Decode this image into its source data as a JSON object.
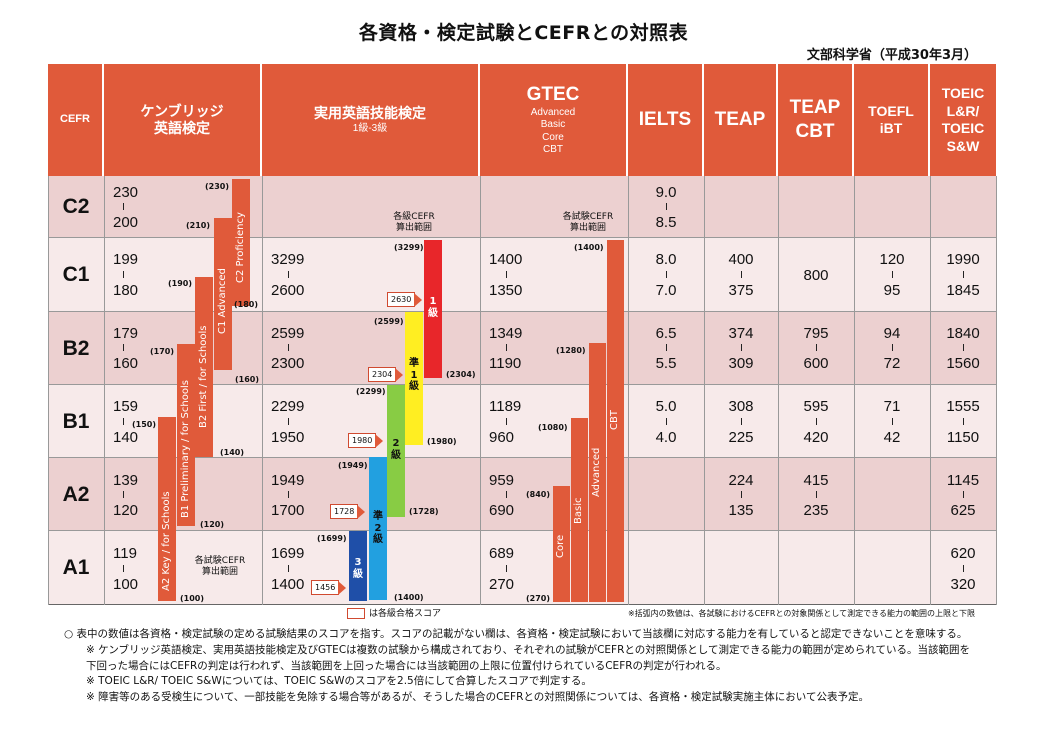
{
  "title": "各資格・検定試験とCEFRとの対照表",
  "source": "文部科学省（平成30年3月）",
  "colors": {
    "header": "#e05a3a",
    "row_dark": "#ecd0d0",
    "row_light": "#f7eaea",
    "eiken_pass_yellow": "#ffee22",
    "eiken_2": "#88cc44",
    "eiken_pre2": "#22a0e0",
    "eiken_3": "#1f4fa8"
  },
  "headers": {
    "cefr": "CEFR",
    "cambridge": [
      "ケンブリッジ",
      "英語検定"
    ],
    "eiken": "実用英語技能検定",
    "eiken_sub": "1級-3級",
    "gtec": "GTEC",
    "gtec_sub": [
      "Advanced",
      "Basic",
      "Core",
      "CBT"
    ],
    "ielts": "IELTS",
    "teap": "TEAP",
    "teap_cbt": [
      "TEAP",
      "CBT"
    ],
    "toefl": [
      "TOEFL",
      "iBT"
    ],
    "toeic": [
      "TOEIC",
      "L&R/",
      "TOEIC",
      "S&W"
    ]
  },
  "levels": [
    "C2",
    "C1",
    "B2",
    "B1",
    "A2",
    "A1"
  ],
  "cambridge_scores": [
    [
      "230",
      "200"
    ],
    [
      "199",
      "180"
    ],
    [
      "179",
      "160"
    ],
    [
      "159",
      "140"
    ],
    [
      "139",
      "120"
    ],
    [
      "119",
      "100"
    ]
  ],
  "cambridge_bars": [
    {
      "name": "C2 Proficiency",
      "top": "(230)",
      "bottom": "(180)"
    },
    {
      "name": "C1 Advanced",
      "top": "(210)",
      "bottom": "(160)"
    },
    {
      "name": "B2 First / for Schools",
      "top": "(190)",
      "bottom": "(140)"
    },
    {
      "name": "B1 Preliminary / for Schools",
      "top": "(170)",
      "bottom": "(120)"
    },
    {
      "name": "A2 Key / for Schools",
      "top": "(150)",
      "bottom": "(100)"
    }
  ],
  "cambridge_note": [
    "各試験CEFR",
    "算出範囲"
  ],
  "eiken_scores": [
    [
      "3299",
      "2600"
    ],
    [
      "2599",
      "2300"
    ],
    [
      "2299",
      "1950"
    ],
    [
      "1949",
      "1700"
    ],
    [
      "1699",
      "1400"
    ]
  ],
  "eiken_grades": [
    {
      "grade": "1級",
      "top": "(3299)",
      "bottom": "(2304)",
      "pass": "2630"
    },
    {
      "grade": "準1級",
      "top": "(2599)",
      "bottom": "(1980)",
      "pass": "2304"
    },
    {
      "grade": "2級",
      "top": "(2299)",
      "bottom": "(1728)",
      "pass": "1980"
    },
    {
      "grade": "準2級",
      "top": "(1949)",
      "bottom": "(1400)",
      "pass": "1728"
    },
    {
      "grade": "3級",
      "top": "(1699)",
      "bottom": "",
      "pass": "1456"
    }
  ],
  "eiken_note": [
    "各級CEFR",
    "算出範囲"
  ],
  "gtec_scores": [
    [
      "1400",
      "1350"
    ],
    [
      "1349",
      "1190"
    ],
    [
      "1189",
      "960"
    ],
    [
      "959",
      "690"
    ],
    [
      "689",
      "270"
    ]
  ],
  "gtec_bars": [
    {
      "name": "CBT",
      "top": "(1400)"
    },
    {
      "name": "Advanced",
      "top": "(1280)"
    },
    {
      "name": "Basic",
      "top": "(1080)"
    },
    {
      "name": "Core",
      "top": "(840)",
      "bottom": "(270)"
    }
  ],
  "gtec_note": [
    "各試験CEFR",
    "算出範囲"
  ],
  "ielts_scores": [
    [
      "9.0",
      "8.5"
    ],
    [
      "8.0",
      "7.0"
    ],
    [
      "6.5",
      "5.5"
    ],
    [
      "5.0",
      "4.0"
    ],
    null,
    null
  ],
  "teap_scores": [
    null,
    [
      "400",
      "375"
    ],
    [
      "374",
      "309"
    ],
    [
      "308",
      "225"
    ],
    [
      "224",
      "135"
    ],
    null
  ],
  "teap_cbt_scores": [
    null,
    [
      "800"
    ],
    [
      "795",
      "600"
    ],
    [
      "595",
      "420"
    ],
    [
      "415",
      "235"
    ],
    null
  ],
  "toefl_scores": [
    null,
    [
      "120",
      "95"
    ],
    [
      "94",
      "72"
    ],
    [
      "71",
      "42"
    ],
    null,
    null
  ],
  "toeic_scores": [
    null,
    [
      "1990",
      "1845"
    ],
    [
      "1840",
      "1560"
    ],
    [
      "1555",
      "1150"
    ],
    [
      "1145",
      "625"
    ],
    [
      "620",
      "320"
    ]
  ],
  "legend": "は各級合格スコア",
  "legend_note": "※括弧内の数値は、各試験におけるCEFRとの対象関係として測定できる能力の範囲の上限と下限",
  "notes": [
    "○ 表中の数値は各資格・検定試験の定める試験結果のスコアを指す。スコアの記載がない欄は、各資格・検定試験において当該欄に対応する能力を有していると認定できないことを意味する。",
    "※ ケンブリッジ英語検定、実用英語技能検定及びGTECは複数の試験から構成されており、それぞれの試験がCEFRとの対照関係として測定できる能力の範囲が定められている。当該範囲を下回った場合にはCEFRの判定は行われず、当該範囲を上回った場合には当該範囲の上限に位置付けられているCEFRの判定が行われる。",
    "※ TOEIC L&R/ TOEIC S&Wについては、TOEIC S&Wのスコアを2.5倍にして合算したスコアで判定する。",
    "※ 障害等のある受検生について、一部技能を免除する場合等があるが、そうした場合のCEFRとの対照関係については、各資格・検定試験実施主体において公表予定。"
  ]
}
